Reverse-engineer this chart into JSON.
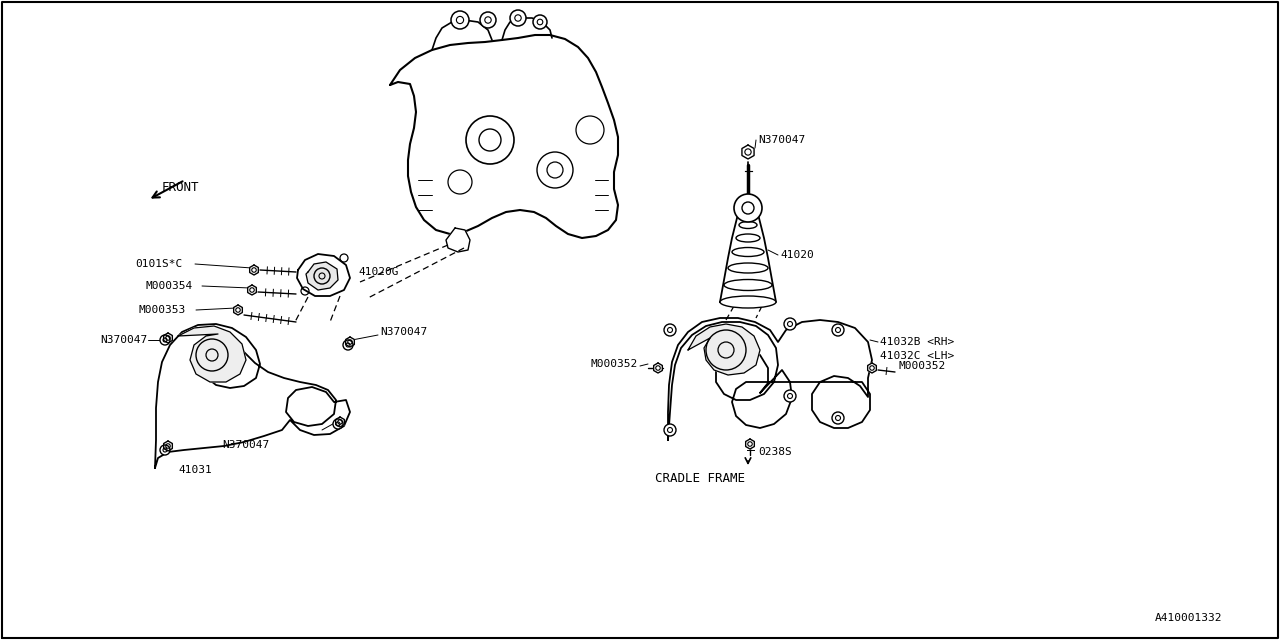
{
  "bg_color": "#ffffff",
  "line_color": "#000000",
  "part_number": "A410001332",
  "labels": {
    "front": "FRONT",
    "cradle_frame": "CRADLE FRAME",
    "41020G": "41020G",
    "41020": "41020",
    "41031": "41031",
    "41032B": "41032B <RH>",
    "41032C": "41032C <LH>",
    "0238S": "0238S",
    "N370047": "N370047",
    "M000352": "M000352",
    "M000353": "M000353",
    "M000354": "M000354",
    "0101SC": "0101S*C"
  },
  "figsize": [
    12.8,
    6.4
  ],
  "dpi": 100
}
